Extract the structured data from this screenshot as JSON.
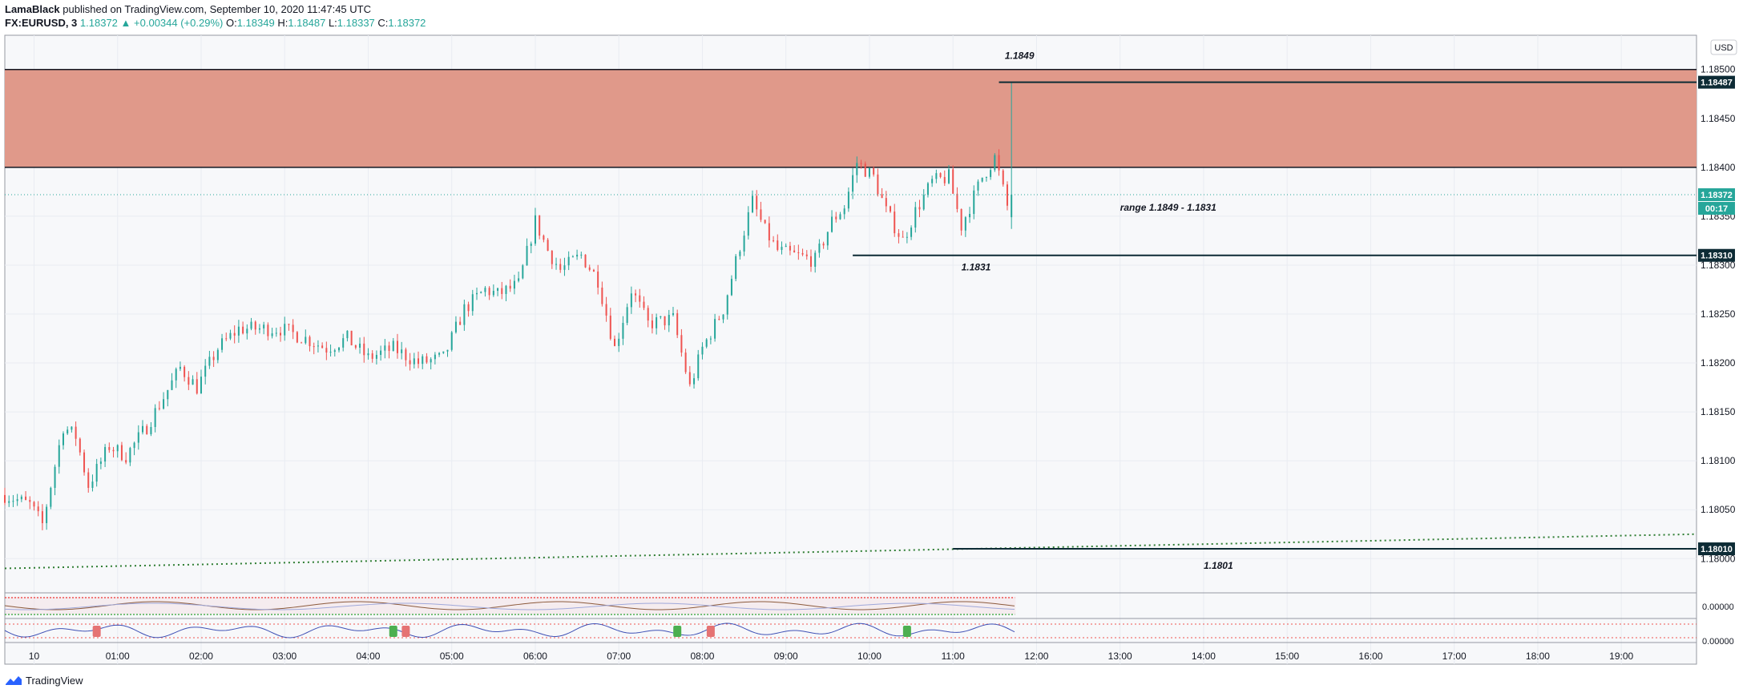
{
  "header": {
    "publisher": "LamaBlack",
    "published_text": "published on TradingView.com, September 10, 2020 11:47:45 UTC",
    "symbol": "FX:EURUSD, 3",
    "last": "1.18372",
    "change": "▲ +0.00344 (+0.29%)",
    "open_label": "O:",
    "open": "1.18349",
    "high_label": "H:",
    "high": "1.18487",
    "low_label": "L:",
    "low": "1.18337",
    "close_label": "C:",
    "close": "1.18372"
  },
  "currency_button": "USD",
  "footer": {
    "brand": "TradingView"
  },
  "colors": {
    "up": "#26a69a",
    "down": "#ef5350",
    "zone": "#e0998a",
    "level_line": "#0d2b35",
    "grid": "#e9ecf2",
    "ma_dotted": "#2e7d32"
  },
  "chart_data": {
    "type": "candlestick",
    "symbol": "FX:EURUSD",
    "timeframe": "3",
    "x_tick_labels": [
      "10",
      "01:00",
      "02:00",
      "03:00",
      "04:00",
      "05:00",
      "06:00",
      "07:00",
      "08:00",
      "09:00",
      "10:00",
      "11:00",
      "12:00",
      "13:00",
      "14:00",
      "15:00",
      "16:00",
      "17:00",
      "18:00",
      "19:00"
    ],
    "y_tick_labels": [
      "1.18500",
      "1.18450",
      "1.18400",
      "1.18350",
      "1.18300",
      "1.18250",
      "1.18200",
      "1.18150",
      "1.18100",
      "1.18050",
      "1.18000"
    ],
    "ylim": [
      1.17965,
      1.18535
    ],
    "x_range_hours": [
      -0.35,
      19.9
    ],
    "candle_interval_hours": 0.05,
    "last_bar_hour": 11.74,
    "path_hours": [
      -0.35,
      -0.05,
      0.1,
      0.35,
      0.5,
      0.65,
      0.9,
      1.1,
      1.35,
      1.55,
      1.75,
      1.95,
      2.2,
      2.45,
      2.75,
      2.95,
      3.25,
      3.5,
      3.75,
      4.0,
      4.3,
      4.6,
      4.9,
      5.15,
      5.4,
      5.55,
      5.8,
      6.0,
      6.15,
      6.3,
      6.55,
      6.75,
      6.95,
      7.15,
      7.35,
      7.65,
      7.85,
      8.0,
      8.25,
      8.45,
      8.6,
      8.75,
      8.9,
      9.1,
      9.35,
      9.55,
      9.7,
      9.85,
      10.05,
      10.2,
      10.4,
      10.55,
      10.75,
      10.95,
      11.1,
      11.35,
      11.5,
      11.65,
      11.74
    ],
    "path_values": [
      1.18065,
      1.18055,
      1.18035,
      1.18135,
      1.18125,
      1.18075,
      1.18115,
      1.18105,
      1.18135,
      1.18165,
      1.18195,
      1.18175,
      1.18215,
      1.18235,
      1.18235,
      1.18235,
      1.18225,
      1.18215,
      1.18225,
      1.18205,
      1.18215,
      1.182,
      1.18205,
      1.18255,
      1.18275,
      1.1827,
      1.1828,
      1.18345,
      1.18315,
      1.18295,
      1.1831,
      1.18285,
      1.18215,
      1.18275,
      1.1824,
      1.18245,
      1.18175,
      1.18215,
      1.18255,
      1.1832,
      1.18365,
      1.18335,
      1.18315,
      1.1831,
      1.18305,
      1.18345,
      1.1836,
      1.18405,
      1.1839,
      1.18355,
      1.18325,
      1.18355,
      1.18385,
      1.1839,
      1.1834,
      1.1839,
      1.1841,
      1.1836,
      1.18372
    ],
    "resistance_zone": {
      "from": 1.184,
      "to": 1.185
    },
    "last_price": 1.18372,
    "countdown": "00:17",
    "levels": [
      {
        "price": 1.18487,
        "badge": "1.18487",
        "start_hour": 11.55
      },
      {
        "price": 1.1831,
        "badge": "1.18310",
        "start_hour": 9.8
      },
      {
        "price": 1.1801,
        "badge": "1.18010",
        "start_hour": 11.0
      }
    ],
    "annotations": [
      {
        "text": "1.1849",
        "hour": 11.62,
        "price": 1.18514
      },
      {
        "text": "range 1.1849 - 1.1831",
        "hour": 13.0,
        "price": 1.18359
      },
      {
        "text": "1.1831",
        "hour": 11.1,
        "price": 1.18298
      },
      {
        "text": "1.1801",
        "hour": 14.0,
        "price": 1.17993
      }
    ],
    "moving_average": {
      "style": "dotted",
      "from": [
        -0.35,
        1.1799
      ],
      "to": [
        19.9,
        1.18025
      ]
    },
    "indicator_1": {
      "value_label": "0.00000"
    },
    "indicator_2": {
      "value_label": "0.00000",
      "markers": [
        {
          "hour": 0.75,
          "type": "sell"
        },
        {
          "hour": 4.3,
          "type": "buy"
        },
        {
          "hour": 4.45,
          "type": "sell"
        },
        {
          "hour": 7.7,
          "type": "buy"
        },
        {
          "hour": 8.1,
          "type": "sell"
        },
        {
          "hour": 10.45,
          "type": "buy"
        }
      ]
    }
  }
}
